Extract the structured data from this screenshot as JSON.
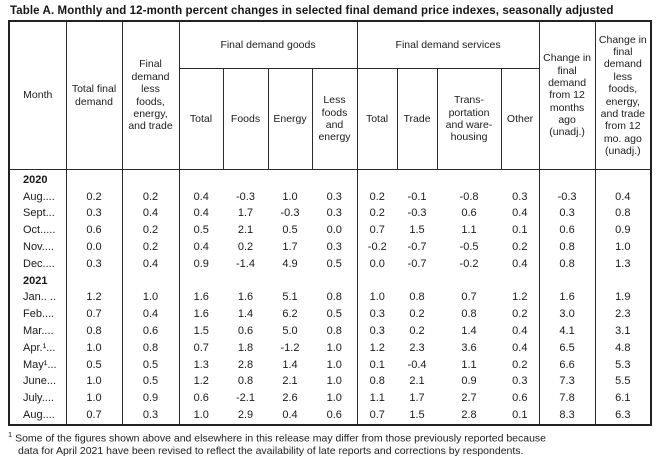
{
  "title": "Table A. Monthly and 12-month percent changes in selected final demand price indexes, seasonally adjusted",
  "table": {
    "columns": {
      "month": "Month",
      "total_final_demand": "Total final demand",
      "less_fet": "Final demand less foods, energy, and trade",
      "goods_group": "Final demand goods",
      "goods": [
        "Total",
        "Foods",
        "Energy",
        "Less foods and energy"
      ],
      "services_group": "Final demand services",
      "services": [
        "Total",
        "Trade",
        "Trans­portation and ware­housing",
        "Other"
      ],
      "change_12mo": "Change in final demand from 12 months ago (unadj.)",
      "change_12mo_less": "Change in final demand less foods, energy, and trade from 12 mo. ago (unadj.)"
    },
    "sections": [
      {
        "year": "2020",
        "rows": [
          {
            "month": "Aug....",
            "values": [
              "0.2",
              "0.2",
              "0.4",
              "-0.3",
              "1.0",
              "0.3",
              "0.2",
              "-0.1",
              "-0.8",
              "0.3",
              "-0.3",
              "0.4"
            ]
          },
          {
            "month": "Sept...",
            "values": [
              "0.3",
              "0.4",
              "0.4",
              "1.7",
              "-0.3",
              "0.3",
              "0.2",
              "-0.3",
              "0.6",
              "0.4",
              "0.3",
              "0.8"
            ]
          },
          {
            "month": "Oct.....",
            "values": [
              "0.6",
              "0.2",
              "0.5",
              "2.1",
              "0.5",
              "0.0",
              "0.7",
              "1.5",
              "1.1",
              "0.1",
              "0.6",
              "0.9"
            ]
          },
          {
            "month": "Nov....",
            "values": [
              "0.0",
              "0.2",
              "0.4",
              "0.2",
              "1.7",
              "0.3",
              "-0.2",
              "-0.7",
              "-0.5",
              "0.2",
              "0.8",
              "1.0"
            ]
          },
          {
            "month": "Dec....",
            "values": [
              "0.3",
              "0.4",
              "0.9",
              "-1.4",
              "4.9",
              "0.5",
              "0.0",
              "-0.7",
              "-0.2",
              "0.4",
              "0.8",
              "1.3"
            ]
          }
        ]
      },
      {
        "year": "2021",
        "rows": [
          {
            "month": "Jan.. ..",
            "values": [
              "1.2",
              "1.0",
              "1.6",
              "1.6",
              "5.1",
              "0.8",
              "1.0",
              "0.8",
              "0.7",
              "1.2",
              "1.6",
              "1.9"
            ]
          },
          {
            "month": "Feb....",
            "values": [
              "0.7",
              "0.4",
              "1.6",
              "1.4",
              "6.2",
              "0.5",
              "0.3",
              "0.2",
              "0.8",
              "0.2",
              "3.0",
              "2.3"
            ]
          },
          {
            "month": "Mar....",
            "values": [
              "0.8",
              "0.6",
              "1.5",
              "0.6",
              "5.0",
              "0.8",
              "0.3",
              "0.2",
              "1.4",
              "0.4",
              "4.1",
              "3.1"
            ]
          },
          {
            "month": "Apr.¹...",
            "values": [
              "1.0",
              "0.8",
              "0.7",
              "1.8",
              "-1.2",
              "1.0",
              "1.2",
              "2.3",
              "3.6",
              "0.4",
              "6.5",
              "4.8"
            ]
          },
          {
            "month": "May¹...",
            "values": [
              "0.5",
              "0.5",
              "1.3",
              "2.8",
              "1.4",
              "1.0",
              "0.1",
              "-0.4",
              "1.1",
              "0.2",
              "6.6",
              "5.3"
            ]
          },
          {
            "month": "June...",
            "values": [
              "1.0",
              "0.5",
              "1.2",
              "0.8",
              "2.1",
              "1.0",
              "0.8",
              "2.1",
              "0.9",
              "0.3",
              "7.3",
              "5.5"
            ]
          },
          {
            "month": "July....",
            "values": [
              "1.0",
              "0.9",
              "0.6",
              "-2.1",
              "2.6",
              "1.0",
              "1.1",
              "1.7",
              "2.7",
              "0.6",
              "7.8",
              "6.1"
            ]
          },
          {
            "month": "Aug....",
            "values": [
              "0.7",
              "0.3",
              "1.0",
              "2.9",
              "0.4",
              "0.6",
              "0.7",
              "1.5",
              "2.8",
              "0.1",
              "8.3",
              "6.3"
            ]
          }
        ]
      }
    ]
  },
  "footnote": {
    "marker": "1",
    "line1": "Some of the figures shown above and elsewhere in this release may differ from those previously reported because",
    "line2": "data for April 2021 have been revised to reflect the availability of late reports and corrections by respondents."
  }
}
